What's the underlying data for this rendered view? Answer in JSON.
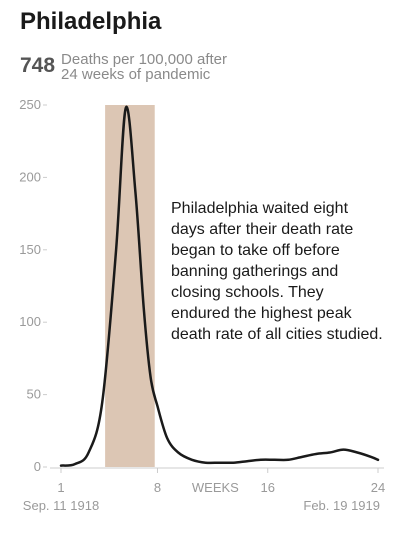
{
  "header": {
    "title": "Philadelphia",
    "stat_value": "748",
    "stat_label_line1": "Deaths per 100,000 after",
    "stat_label_line2": "24 weeks of pandemic"
  },
  "annotation": "Philadelphia waited eight days after their death rate began to take off before banning gatherings and closing schools. They endured the highest peak death rate of all cities studied.",
  "colors": {
    "line": "#1a1a1a",
    "highlight": "#dcc6b4",
    "axis": "#cccccc",
    "tick_text": "#9a9a9a"
  },
  "chart_data": {
    "type": "line",
    "y_ticks": [
      0,
      50,
      100,
      150,
      200,
      250
    ],
    "ylim": [
      0,
      250
    ],
    "xlim": [
      1,
      24
    ],
    "x_ticks": [
      {
        "value": 1,
        "label": "1"
      },
      {
        "value": 8,
        "label": "8"
      },
      {
        "value": 12.2,
        "label": "WEEKS"
      },
      {
        "value": 16,
        "label": "16"
      },
      {
        "value": 24,
        "label": "24"
      }
    ],
    "start_label": "Sep. 11 1918",
    "end_label": "Feb. 19 1919",
    "highlight_range": [
      4.2,
      7.8
    ],
    "series": [
      {
        "x": [
          1,
          2,
          3,
          4,
          5,
          5.7,
          6.4,
          7,
          7.5,
          8,
          8.7,
          9.5,
          10.5,
          11.5,
          12.5,
          13.5,
          14.5,
          15.5,
          16.5,
          17.5,
          18.5,
          19.5,
          20.5,
          21.5,
          22.5,
          23.5,
          24
        ],
        "y": [
          1,
          2,
          10,
          45,
          150,
          248,
          190,
          110,
          62,
          42,
          20,
          10,
          5,
          3,
          3,
          3,
          4,
          5,
          5,
          5,
          7,
          9,
          10,
          12,
          10,
          7,
          5
        ]
      }
    ]
  }
}
